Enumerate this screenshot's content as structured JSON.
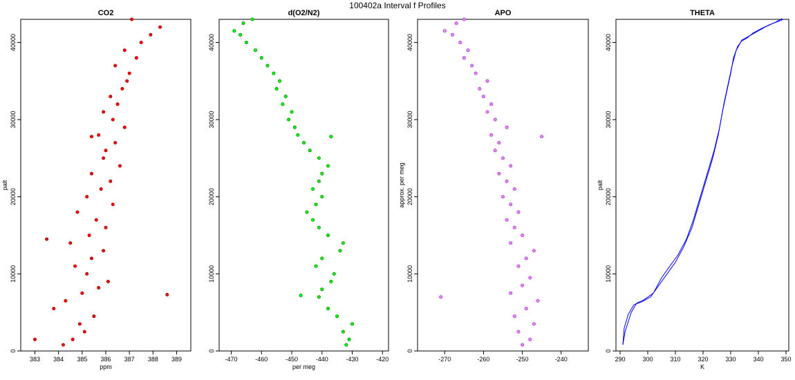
{
  "figure": {
    "title": "100402a   Interval f Profiles"
  },
  "chart_data": [
    {
      "type": "scatter",
      "title": "CO2",
      "xlabel": "ppm",
      "ylabel": "palt",
      "xlim": [
        382.4,
        389.6
      ],
      "ylim": [
        0,
        43000
      ],
      "x_ticks": [
        383,
        384,
        385,
        386,
        387,
        388,
        389
      ],
      "y_ticks": [
        0,
        10000,
        20000,
        30000,
        40000
      ],
      "color": "#ff0000",
      "edge_color": "#8b0000",
      "series": [
        {
          "x": [
            384.2,
            384.6,
            385.1,
            384.9,
            385.5,
            383.8,
            384.3,
            385.0,
            385.7,
            386.1,
            385.2,
            384.7,
            385.4,
            385.9,
            384.5,
            385.3,
            386.0,
            385.6,
            384.8,
            386.3,
            385.2,
            385.8,
            386.2,
            385.4,
            386.6,
            385.9,
            386.0,
            386.4,
            385.7,
            386.8,
            386.3,
            385.9,
            386.5,
            386.2,
            386.7,
            386.9,
            387.0,
            386.4,
            387.3,
            386.8,
            387.5,
            387.9,
            388.3,
            387.1,
            385.4,
            383.5,
            383.0,
            388.6
          ],
          "y": [
            800,
            1500,
            2500,
            3500,
            4500,
            5500,
            6500,
            7500,
            8200,
            9000,
            10000,
            11000,
            12000,
            13000,
            14000,
            15000,
            16000,
            17000,
            18000,
            19000,
            20000,
            21000,
            22000,
            23000,
            24000,
            25000,
            26000,
            27000,
            28000,
            29000,
            30000,
            31000,
            32000,
            33000,
            34000,
            35000,
            36000,
            37000,
            38000,
            39000,
            40000,
            41000,
            42000,
            43000,
            27800,
            14500,
            1500,
            7300
          ]
        }
      ]
    },
    {
      "type": "scatter",
      "title": "d(O2/N2)",
      "xlabel": "per meg",
      "ylabel": "",
      "xlim": [
        -474,
        -418
      ],
      "ylim": [
        0,
        43000
      ],
      "x_ticks": [
        -470,
        -460,
        -450,
        -440,
        -430,
        -420
      ],
      "y_ticks": [
        0,
        10000,
        20000,
        30000,
        40000
      ],
      "color": "#00ff00",
      "edge_color": "#006400",
      "series": [
        {
          "x": [
            -432,
            -431,
            -433,
            -430,
            -435,
            -438,
            -441,
            -440,
            -437,
            -436,
            -442,
            -440,
            -434,
            -433,
            -438,
            -441,
            -443,
            -445,
            -442,
            -440,
            -443,
            -441,
            -440,
            -438,
            -441,
            -444,
            -446,
            -448,
            -449,
            -451,
            -450,
            -453,
            -452,
            -455,
            -454,
            -456,
            -458,
            -460,
            -462,
            -465,
            -467,
            -469,
            -466,
            -463,
            -437,
            -447
          ],
          "y": [
            800,
            1500,
            2500,
            3500,
            4500,
            5500,
            7000,
            8000,
            9000,
            10000,
            11000,
            12000,
            13000,
            14000,
            15000,
            16000,
            17000,
            18000,
            19000,
            20000,
            21000,
            22000,
            23000,
            24000,
            25000,
            26000,
            27000,
            28000,
            29000,
            30000,
            31000,
            32000,
            33000,
            34000,
            35000,
            36000,
            37000,
            38000,
            39000,
            40000,
            41000,
            41500,
            42500,
            43000,
            27800,
            7200
          ]
        }
      ]
    },
    {
      "type": "scatter",
      "title": "APO",
      "xlabel": "",
      "ylabel": "approx. per meg",
      "xlim": [
        -277,
        -233
      ],
      "ylim": [
        0,
        43000
      ],
      "x_ticks": [
        -270,
        -260,
        -250,
        -240
      ],
      "y_ticks": [
        0,
        10000,
        20000,
        30000,
        40000
      ],
      "color": "#ee82ee",
      "edge_color": "#8a2be2",
      "series": [
        {
          "x": [
            -250,
            -248,
            -251,
            -247,
            -252,
            -249,
            -246,
            -253,
            -250,
            -248,
            -251,
            -249,
            -247,
            -253,
            -250,
            -252,
            -254,
            -251,
            -253,
            -255,
            -252,
            -254,
            -256,
            -253,
            -255,
            -257,
            -256,
            -258,
            -254,
            -257,
            -259,
            -258,
            -260,
            -261,
            -259,
            -262,
            -263,
            -265,
            -264,
            -266,
            -268,
            -270,
            -267,
            -265,
            -245,
            -271
          ],
          "y": [
            800,
            1500,
            2500,
            3500,
            4500,
            5500,
            6500,
            7500,
            8500,
            9500,
            11000,
            12000,
            13000,
            14000,
            15000,
            16000,
            17000,
            18000,
            19000,
            20000,
            21000,
            22000,
            23000,
            24000,
            25000,
            26000,
            27000,
            28000,
            29000,
            30000,
            31000,
            32000,
            33000,
            34000,
            35000,
            36000,
            37000,
            38000,
            39000,
            40000,
            41000,
            41500,
            42500,
            43000,
            27800,
            7000
          ]
        }
      ]
    },
    {
      "type": "line",
      "title": "THETA",
      "xlabel": "K",
      "ylabel": "palt",
      "xlim": [
        288.5,
        351
      ],
      "ylim": [
        0,
        43000
      ],
      "x_ticks": [
        290,
        300,
        310,
        320,
        330,
        340,
        350
      ],
      "y_ticks": [
        0,
        10000,
        20000,
        30000,
        40000
      ],
      "color": "#0000ff",
      "series": [
        {
          "name": "",
          "x": [
            291.0,
            291.5,
            293.0,
            295.0,
            298.0,
            301.0,
            304.0,
            307.0,
            310.0,
            313.0,
            316.0,
            318.5,
            321.0,
            323.5,
            325.5,
            327.0,
            328.5,
            330.0,
            331.0,
            332.5,
            334.0,
            336.0,
            338.0,
            341.0,
            344.0,
            347.0,
            349.0
          ],
          "y": [
            800,
            3000,
            4800,
            6000,
            6400,
            7000,
            8500,
            10000,
            11500,
            13500,
            16000,
            19000,
            22000,
            25000,
            28000,
            31000,
            33500,
            36000,
            38000,
            39500,
            40200,
            40600,
            41200,
            41800,
            42300,
            42700,
            43000
          ]
        },
        {
          "name": "",
          "x": [
            291.0,
            291.8,
            294.0,
            296.0,
            298.5,
            302.0,
            305.0,
            308.0,
            311.0,
            314.0,
            316.5,
            319.0,
            321.5,
            324.0,
            326.0,
            327.5,
            329.0,
            330.5,
            332.0,
            334.0,
            337.0,
            340.0,
            343.0,
            346.0,
            348.5
          ],
          "y": [
            800,
            2500,
            5000,
            6200,
            6600,
            7500,
            9500,
            11000,
            12500,
            14500,
            17000,
            20000,
            23000,
            26000,
            29000,
            32000,
            34500,
            37000,
            39000,
            40300,
            40900,
            41500,
            42100,
            42600,
            43100
          ]
        }
      ]
    }
  ]
}
